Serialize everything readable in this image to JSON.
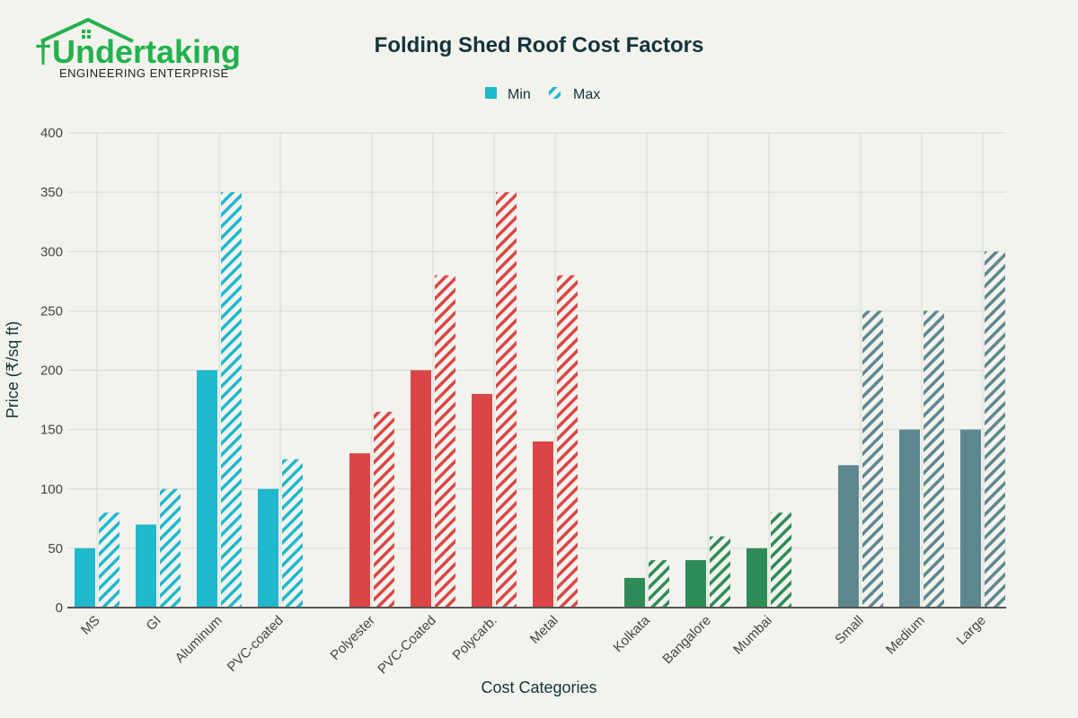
{
  "logo": {
    "name": "Undertaking",
    "tagline": "ENGINEERING ENTERPRISE",
    "color": "#22b24c"
  },
  "chart_data": {
    "type": "bar",
    "title": "Folding Shed Roof Cost Factors",
    "xlabel": "Cost Categories",
    "ylabel": "Price (₹/sq ft)",
    "ylim": [
      0,
      400
    ],
    "yticks": [
      0,
      50,
      100,
      150,
      200,
      250,
      300,
      350,
      400
    ],
    "grid": true,
    "legend": {
      "placement": "top-center",
      "entries": [
        {
          "name": "Min",
          "style": "solid"
        },
        {
          "name": "Max",
          "style": "hatched"
        }
      ]
    },
    "groups": [
      {
        "color": "#1fb8cd",
        "categories": [
          "MS",
          "GI",
          "Aluminum",
          "PVC-coated"
        ],
        "min": [
          50,
          70,
          200,
          100
        ],
        "max": [
          80,
          100,
          350,
          125
        ]
      },
      {
        "color": "#db4545",
        "categories": [
          "Polyester",
          "PVC-Coated",
          "Polycarb.",
          "Metal"
        ],
        "min": [
          130,
          200,
          180,
          140
        ],
        "max": [
          165,
          280,
          350,
          280
        ]
      },
      {
        "color": "#2e8b57",
        "categories": [
          "Kolkata",
          "Bangalore",
          "Mumbai"
        ],
        "min": [
          25,
          40,
          50
        ],
        "max": [
          40,
          60,
          80
        ]
      },
      {
        "color": "#5d878f",
        "categories": [
          "Small",
          "Medium",
          "Large"
        ],
        "min": [
          120,
          150,
          150
        ],
        "max": [
          250,
          250,
          300
        ]
      }
    ]
  }
}
